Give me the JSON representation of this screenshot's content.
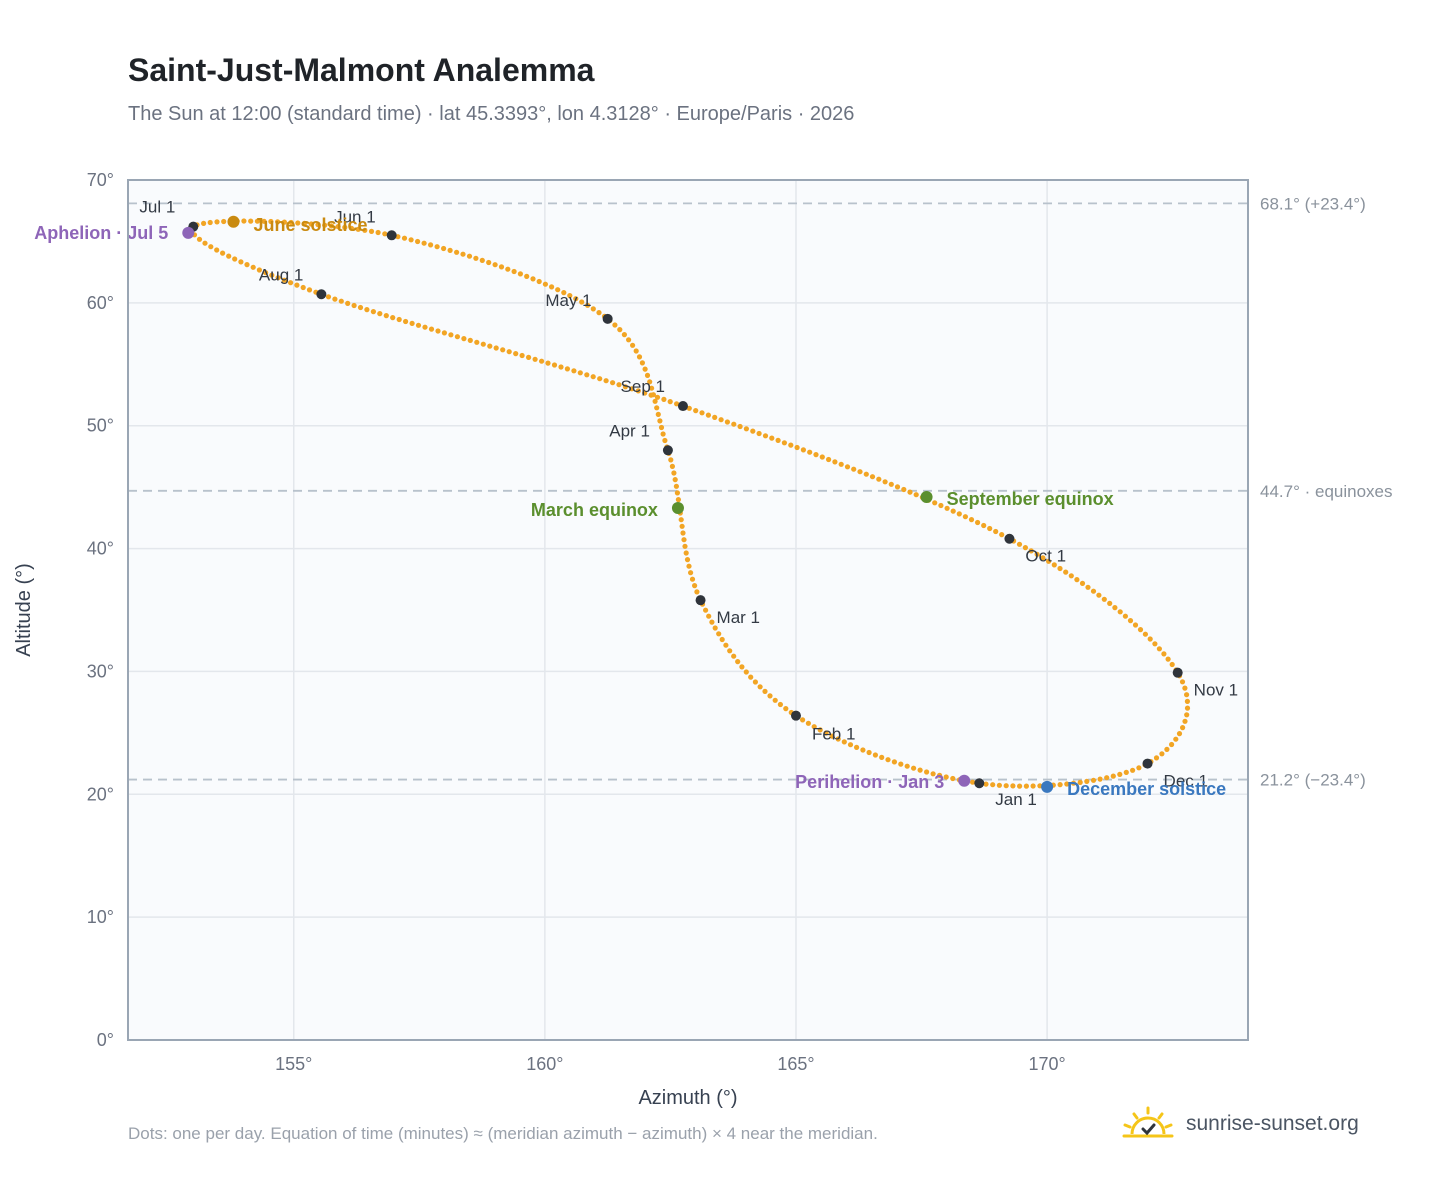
{
  "header": {
    "title": "Saint-Just-Malmont Analemma",
    "subtitle": "The Sun at 12:00 (standard time) · lat 45.3393°, lon 4.3128° · Europe/Paris · 2026"
  },
  "footer": {
    "note": "Dots: one per day. Equation of time (minutes) ≈ (meridian azimuth − azimuth) × 4 near the meridian.",
    "brand": "sunrise-sunset.org"
  },
  "colors": {
    "curve": "#f2a524",
    "month_dot": "#2f343b",
    "aphelion": "#8e65b8",
    "perihelion": "#8e65b8",
    "june_solstice": "#c98a10",
    "december_solstice": "#3a78bf",
    "equinox": "#5b8f2e",
    "grid": "#e3e7ec",
    "plot_bg": "#f9fbfd",
    "frame": "#9aa6b4",
    "ref_line": "#b8c2cc"
  },
  "chart_data": {
    "type": "scatter",
    "title": "Saint-Just-Malmont Analemma",
    "xlabel": "Azimuth (°)",
    "ylabel": "Altitude (°)",
    "xlim": [
      151.7,
      174.0
    ],
    "ylim": [
      0,
      70
    ],
    "x_ticks": [
      {
        "value": 155,
        "label": "155°"
      },
      {
        "value": 160,
        "label": "160°"
      },
      {
        "value": 165,
        "label": "165°"
      },
      {
        "value": 170,
        "label": "170°"
      }
    ],
    "y_ticks": [
      {
        "value": 0,
        "label": "0°"
      },
      {
        "value": 10,
        "label": "10°"
      },
      {
        "value": 20,
        "label": "20°"
      },
      {
        "value": 30,
        "label": "30°"
      },
      {
        "value": 40,
        "label": "40°"
      },
      {
        "value": 50,
        "label": "50°"
      },
      {
        "value": 60,
        "label": "60°"
      },
      {
        "value": 70,
        "label": "70°"
      }
    ],
    "grid": true,
    "series": [
      {
        "key": "daily",
        "anchors": [
          {
            "az": 168.65,
            "alt": 20.9
          },
          {
            "az": 165.0,
            "alt": 26.4
          },
          {
            "az": 163.1,
            "alt": 35.8
          },
          {
            "az": 162.45,
            "alt": 48.0
          },
          {
            "az": 161.25,
            "alt": 58.7
          },
          {
            "az": 156.95,
            "alt": 65.5
          },
          {
            "az": 153.0,
            "alt": 66.2
          },
          {
            "az": 155.55,
            "alt": 60.7
          },
          {
            "az": 162.75,
            "alt": 51.6
          },
          {
            "az": 169.25,
            "alt": 40.8
          },
          {
            "az": 172.6,
            "alt": 29.9
          },
          {
            "az": 172.0,
            "alt": 22.5
          },
          {
            "az": 168.65,
            "alt": 20.9
          }
        ],
        "daily_points": 365
      }
    ],
    "month_markers": [
      {
        "label": "Jan 1",
        "az": 168.65,
        "alt": 20.9
      },
      {
        "label": "Feb 1",
        "az": 165.0,
        "alt": 26.4
      },
      {
        "label": "Mar 1",
        "az": 163.1,
        "alt": 35.8
      },
      {
        "label": "Apr 1",
        "az": 162.45,
        "alt": 48.0
      },
      {
        "label": "May 1",
        "az": 161.25,
        "alt": 58.7
      },
      {
        "label": "Jun 1",
        "az": 156.95,
        "alt": 65.5
      },
      {
        "label": "Jul 1",
        "az": 153.0,
        "alt": 66.2
      },
      {
        "label": "Aug 1",
        "az": 155.55,
        "alt": 60.7
      },
      {
        "label": "Sep 1",
        "az": 162.75,
        "alt": 51.6
      },
      {
        "label": "Oct 1",
        "az": 169.25,
        "alt": 40.8
      },
      {
        "label": "Nov 1",
        "az": 172.6,
        "alt": 29.9
      },
      {
        "label": "Dec 1",
        "az": 172.0,
        "alt": 22.5
      }
    ],
    "events": [
      {
        "label": "Aphelion · Jul 5",
        "az": 152.9,
        "alt": 65.7,
        "kind": "aphelion"
      },
      {
        "label": "June solstice",
        "az": 153.8,
        "alt": 66.6,
        "kind": "june_solstice"
      },
      {
        "label": "March equinox",
        "az": 162.65,
        "alt": 43.3,
        "kind": "equinox"
      },
      {
        "label": "September equinox",
        "az": 167.6,
        "alt": 44.2,
        "kind": "equinox"
      },
      {
        "label": "Perihelion · Jan 3",
        "az": 168.35,
        "alt": 21.1,
        "kind": "perihelion"
      },
      {
        "label": "December solstice",
        "az": 170.0,
        "alt": 20.6,
        "kind": "december_solstice"
      }
    ],
    "reference_lines": [
      {
        "value": 68.1,
        "label": "68.1° (+23.4°)"
      },
      {
        "value": 44.7,
        "label": "44.7° · equinoxes"
      },
      {
        "value": 21.2,
        "label": "21.2° (−23.4°)"
      }
    ]
  }
}
